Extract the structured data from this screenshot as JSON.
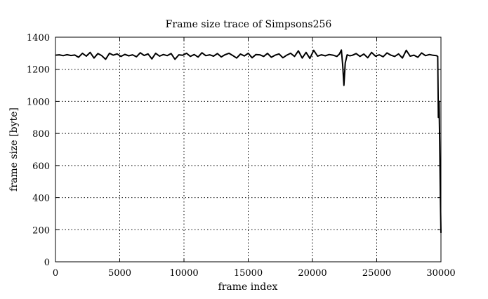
{
  "chart_data": {
    "type": "line",
    "title": "Frame size trace of Simpsons256",
    "xlabel": "frame index",
    "ylabel": "frame size [byte]",
    "xlim": [
      0,
      30000
    ],
    "ylim": [
      0,
      1400
    ],
    "x_ticks": [
      0,
      5000,
      10000,
      15000,
      20000,
      25000,
      30000
    ],
    "y_ticks": [
      0,
      200,
      400,
      600,
      800,
      1000,
      1200,
      1400
    ],
    "x_tick_labels": [
      "0",
      "5000",
      "10000",
      "15000",
      "20000",
      "25000",
      "30000"
    ],
    "y_tick_labels": [
      "0",
      "200",
      "400",
      "600",
      "800",
      "1000",
      "1200",
      "1400"
    ],
    "grid": true,
    "legend": "none",
    "line_color": "#000000",
    "series": [
      {
        "x": [
          0,
          300,
          600,
          900,
          1200,
          1500,
          1800,
          2100,
          2400,
          2700,
          3000,
          3300,
          3600,
          3900,
          4200,
          4500,
          4800,
          5100,
          5400,
          5700,
          6000,
          6300,
          6600,
          6900,
          7200,
          7500,
          7800,
          8100,
          8400,
          8700,
          9000,
          9300,
          9600,
          9900,
          10200,
          10500,
          10800,
          11100,
          11400,
          11700,
          12000,
          12300,
          12600,
          12900,
          13200,
          13500,
          13800,
          14100,
          14400,
          14700,
          15000,
          15300,
          15600,
          15900,
          16200,
          16500,
          16800,
          17100,
          17400,
          17700,
          18000,
          18300,
          18600,
          18900,
          19200,
          19500,
          19800,
          20100,
          20400,
          20700,
          21000,
          21300,
          21600,
          21900,
          22100,
          22250,
          22350,
          22450,
          22550,
          22700,
          22900,
          23100,
          23400,
          23700,
          24000,
          24300,
          24600,
          24900,
          25200,
          25500,
          25800,
          26100,
          26400,
          26700,
          27000,
          27300,
          27600,
          27900,
          28200,
          28500,
          28800,
          29100,
          29400,
          29650,
          29750,
          29800,
          29850,
          29900,
          29950,
          30000
        ],
        "y": [
          1288,
          1290,
          1285,
          1291,
          1286,
          1289,
          1275,
          1300,
          1282,
          1305,
          1270,
          1298,
          1285,
          1262,
          1300,
          1288,
          1296,
          1280,
          1293,
          1284,
          1290,
          1278,
          1303,
          1286,
          1296,
          1265,
          1300,
          1282,
          1292,
          1285,
          1298,
          1262,
          1290,
          1287,
          1300,
          1280,
          1292,
          1276,
          1303,
          1285,
          1290,
          1282,
          1298,
          1277,
          1291,
          1300,
          1286,
          1270,
          1295,
          1283,
          1300,
          1272,
          1292,
          1290,
          1280,
          1299,
          1275,
          1288,
          1296,
          1272,
          1288,
          1300,
          1280,
          1315,
          1270,
          1305,
          1268,
          1318,
          1282,
          1290,
          1284,
          1292,
          1288,
          1280,
          1295,
          1320,
          1230,
          1100,
          1240,
          1290,
          1284,
          1287,
          1298,
          1280,
          1295,
          1272,
          1305,
          1282,
          1290,
          1278,
          1302,
          1288,
          1280,
          1296,
          1270,
          1318,
          1282,
          1288,
          1275,
          1302,
          1285,
          1292,
          1287,
          1285,
          1280,
          900,
          1000,
          750,
          420,
          180
        ]
      }
    ]
  }
}
